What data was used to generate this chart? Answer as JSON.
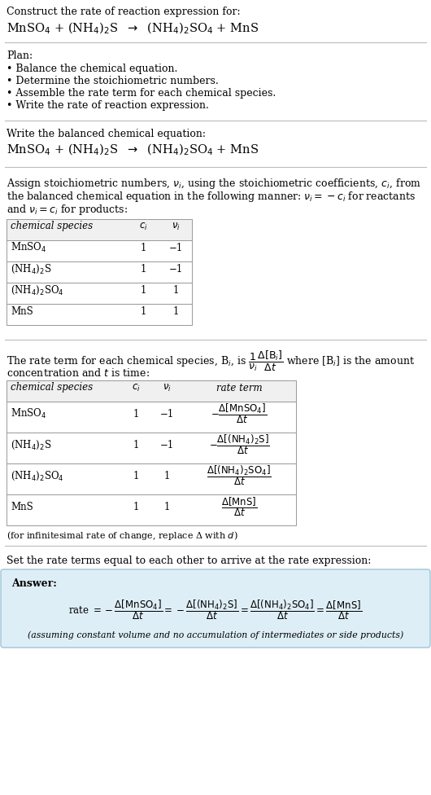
{
  "bg_color": "#ffffff",
  "text_color": "#000000",
  "title_line1": "Construct the rate of reaction expression for:",
  "reaction_eq_parts": [
    [
      "MnSO",
      "4",
      " + (NH",
      "4",
      ")"
    ],
    [
      "2",
      "S  →  (NH",
      "4",
      ")"
    ],
    [
      "2",
      "SO",
      "4",
      " + MnS"
    ]
  ],
  "plan_header": "Plan:",
  "plan_items": [
    "• Balance the chemical equation.",
    "• Determine the stoichiometric numbers.",
    "• Assemble the rate term for each chemical species.",
    "• Write the rate of reaction expression."
  ],
  "balanced_header": "Write the balanced chemical equation:",
  "stoich_intro_lines": [
    "Assign stoichiometric numbers, $\\nu_i$, using the stoichiometric coefficients, $c_i$, from",
    "the balanced chemical equation in the following manner: $\\nu_i = -c_i$ for reactants",
    "and $\\nu_i = c_i$ for products:"
  ],
  "table1_headers": [
    "chemical species",
    "$c_i$",
    "$\\nu_i$"
  ],
  "table1_data": [
    [
      "MnSO$_4$",
      "1",
      "−1"
    ],
    [
      "(NH$_4$)$_2$S",
      "1",
      "−1"
    ],
    [
      "(NH$_4$)$_2$SO$_4$",
      "1",
      "1"
    ],
    [
      "MnS",
      "1",
      "1"
    ]
  ],
  "rate_intro_line1": "The rate term for each chemical species, B$_i$, is $\\dfrac{1}{\\nu_i}\\dfrac{\\Delta[\\mathrm{B}_i]}{\\Delta t}$ where [B$_i$] is the amount",
  "rate_intro_line2": "concentration and $t$ is time:",
  "table2_headers": [
    "chemical species",
    "$c_i$",
    "$\\nu_i$",
    "rate term"
  ],
  "table2_data": [
    [
      "MnSO$_4$",
      "1",
      "−1",
      "$-\\dfrac{\\Delta[\\mathrm{MnSO_4}]}{\\Delta t}$"
    ],
    [
      "(NH$_4$)$_2$S",
      "1",
      "−1",
      "$-\\dfrac{\\Delta[\\mathrm{(NH_4)_2S}]}{\\Delta t}$"
    ],
    [
      "(NH$_4$)$_2$SO$_4$",
      "1",
      "1",
      "$\\dfrac{\\Delta[\\mathrm{(NH_4)_2SO_4}]}{\\Delta t}$"
    ],
    [
      "MnS",
      "1",
      "1",
      "$\\dfrac{\\Delta[\\mathrm{MnS}]}{\\Delta t}$"
    ]
  ],
  "infinitesimal_note": "(for infinitesimal rate of change, replace Δ with $d$)",
  "set_rate_text": "Set the rate terms equal to each other to arrive at the rate expression:",
  "answer_box_color": "#deeef6",
  "answer_box_border": "#a0c4d8",
  "answer_label": "Answer:",
  "rate_expression": "rate $= -\\dfrac{\\Delta[\\mathrm{MnSO_4}]}{\\Delta t} = -\\dfrac{\\Delta[\\mathrm{(NH_4)_2S}]}{\\Delta t} = \\dfrac{\\Delta[\\mathrm{(NH_4)_2SO_4}]}{\\Delta t} = \\dfrac{\\Delta[\\mathrm{MnS}]}{\\Delta t}$",
  "assuming_note": "(assuming constant volume and no accumulation of intermediates or side products)"
}
